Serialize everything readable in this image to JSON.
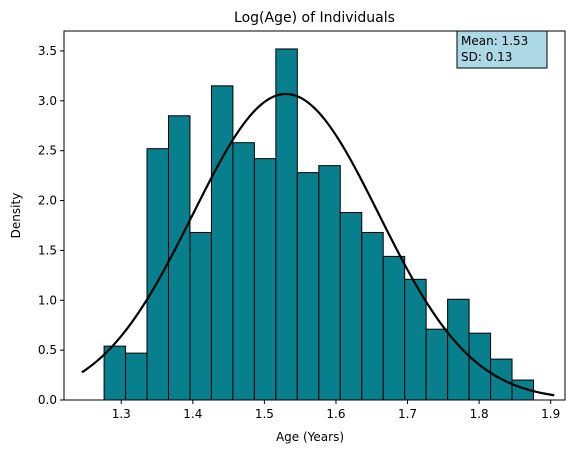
{
  "chart_data": {
    "type": "bar",
    "title": "Log(Age) of Individuals",
    "xlabel": "Age (Years)",
    "ylabel": "Density",
    "xlim": [
      1.22,
      1.92
    ],
    "ylim": [
      0,
      3.7
    ],
    "xticks": [
      "1.3",
      "1.4",
      "1.5",
      "1.6",
      "1.7",
      "1.8",
      "1.9"
    ],
    "yticks": [
      "0.0",
      "0.5",
      "1.0",
      "1.5",
      "2.0",
      "2.5",
      "3.0",
      "3.5"
    ],
    "bar_color": "#077f8c",
    "bar_edge_color": "#000000",
    "bins": [
      {
        "x0": 1.276,
        "x1": 1.306,
        "value": 0.54
      },
      {
        "x0": 1.306,
        "x1": 1.336,
        "value": 0.47
      },
      {
        "x0": 1.336,
        "x1": 1.366,
        "value": 2.52
      },
      {
        "x0": 1.366,
        "x1": 1.396,
        "value": 2.85
      },
      {
        "x0": 1.396,
        "x1": 1.426,
        "value": 1.68
      },
      {
        "x0": 1.426,
        "x1": 1.456,
        "value": 3.15
      },
      {
        "x0": 1.456,
        "x1": 1.486,
        "value": 2.58
      },
      {
        "x0": 1.486,
        "x1": 1.516,
        "value": 2.42
      },
      {
        "x0": 1.516,
        "x1": 1.546,
        "value": 3.52
      },
      {
        "x0": 1.546,
        "x1": 1.576,
        "value": 2.28
      },
      {
        "x0": 1.576,
        "x1": 1.606,
        "value": 2.35
      },
      {
        "x0": 1.606,
        "x1": 1.636,
        "value": 1.88
      },
      {
        "x0": 1.636,
        "x1": 1.666,
        "value": 1.68
      },
      {
        "x0": 1.666,
        "x1": 1.696,
        "value": 1.44
      },
      {
        "x0": 1.696,
        "x1": 1.726,
        "value": 1.21
      },
      {
        "x0": 1.726,
        "x1": 1.756,
        "value": 0.71
      },
      {
        "x0": 1.756,
        "x1": 1.786,
        "value": 1.01
      },
      {
        "x0": 1.786,
        "x1": 1.816,
        "value": 0.67
      },
      {
        "x0": 1.816,
        "x1": 1.846,
        "value": 0.41
      },
      {
        "x0": 1.846,
        "x1": 1.876,
        "value": 0.2
      }
    ],
    "normal_curve": {
      "mean": 1.53,
      "sd": 0.13,
      "x_range": [
        1.245,
        1.905
      ],
      "color": "#000000"
    },
    "annotation": {
      "lines": [
        "Mean: 1.53",
        "SD: 0.13"
      ],
      "position": "top-right",
      "background": "#add8e6",
      "border": "#000000"
    },
    "grid": false,
    "legend": false
  }
}
